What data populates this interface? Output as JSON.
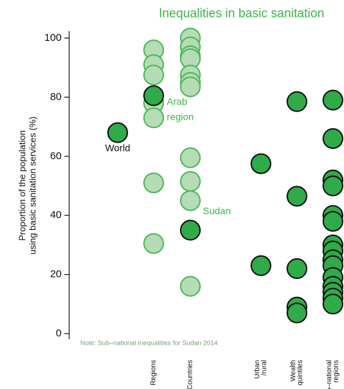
{
  "chart_data": {
    "type": "strip",
    "title": "Inequalities in basic sanitation",
    "title_color": "#3bb54a",
    "y_label": [
      "Proportion of the population",
      "using basic sanitation services (%)"
    ],
    "note": "Note: Sub–national inequalities for Sudan  2014",
    "categories": [
      null,
      [
        "Regions"
      ],
      [
        "Countries"
      ],
      [
        "Urban",
        "/rural"
      ],
      [
        "Wealth",
        "quintiles"
      ],
      [
        "Sub–national",
        "regions"
      ]
    ],
    "ylim": [
      0,
      105
    ],
    "yticks": [
      0,
      20,
      40,
      60,
      80,
      100
    ],
    "series": [
      {
        "color": "#b5dcb5",
        "edge": "#4cb85a",
        "values": [
          [],
          [
            96,
            91,
            87.5,
            78,
            73,
            51,
            30.5
          ],
          [
            100,
            97,
            94,
            93,
            87.5,
            85,
            83.5,
            59.5,
            51.5,
            45,
            16
          ],
          [],
          [],
          []
        ]
      },
      {
        "color": "#2fab4a",
        "edge": "#111111",
        "values": [
          [
            68
          ],
          [
            80.5
          ],
          [
            35
          ],
          [
            57.5,
            23
          ],
          [
            78.5,
            46.5,
            22,
            9,
            7
          ],
          [
            79,
            66,
            52,
            50,
            40,
            38,
            30,
            28,
            25,
            23,
            19,
            16,
            14,
            12,
            10
          ]
        ]
      }
    ],
    "annotations": [
      {
        "text": [
          "World"
        ],
        "color": "#111111"
      },
      {
        "text": [
          "Arab",
          "region"
        ],
        "color": "#3bb54a"
      },
      {
        "text": [
          "Sudan"
        ],
        "color": "#3bb54a"
      }
    ]
  }
}
